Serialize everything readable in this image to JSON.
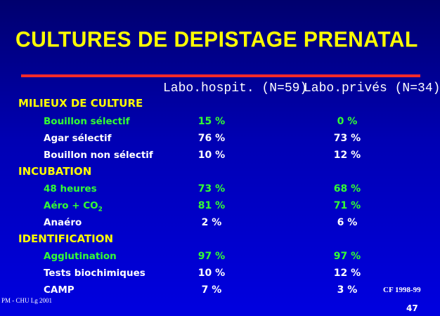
{
  "title": "CULTURES  DE DEPISTAGE PRENATAL",
  "columns": [
    "Labo.hospit. (N=59)",
    "Labo.privés (N=34)"
  ],
  "sections": [
    {
      "label": "MILIEUX DE CULTURE",
      "rows": [
        {
          "label": "Bouillon sélectif",
          "hosp": "15 %",
          "priv": "0 %",
          "color": "green"
        },
        {
          "label": "Agar sélectif",
          "hosp": "76 %",
          "priv": "73 %",
          "color": "white"
        },
        {
          "label": "Bouillon non sélectif",
          "hosp": "10 %",
          "priv": "12 %",
          "color": "white"
        }
      ]
    },
    {
      "label": "INCUBATION",
      "rows": [
        {
          "label": "48 heures",
          "hosp": "73 %",
          "priv": "68 %",
          "color": "green"
        },
        {
          "label": "Aéro + CO",
          "sub": "2",
          "hosp": "81 %",
          "priv": "71 %",
          "color": "green"
        },
        {
          "label": "Anaéro",
          "hosp": "2 %",
          "priv": "6 %",
          "color": "white"
        }
      ]
    },
    {
      "label": "IDENTIFICATION",
      "rows": [
        {
          "label": "Agglutination",
          "hosp": "97 %",
          "priv": "97 %",
          "color": "green"
        },
        {
          "label": "Tests biochimiques",
          "hosp": "10 %",
          "priv": "12 %",
          "color": "white"
        },
        {
          "label": "CAMP",
          "hosp": "7 %",
          "priv": "3 %",
          "color": "white"
        }
      ]
    }
  ],
  "source": "CF 1998-99",
  "footer": "PM - CHU Lg 2001",
  "page": "47",
  "colors": {
    "title": "#ffff00",
    "rule": "#ff2a2a",
    "green": "#33ff33",
    "white": "#ffffff"
  }
}
